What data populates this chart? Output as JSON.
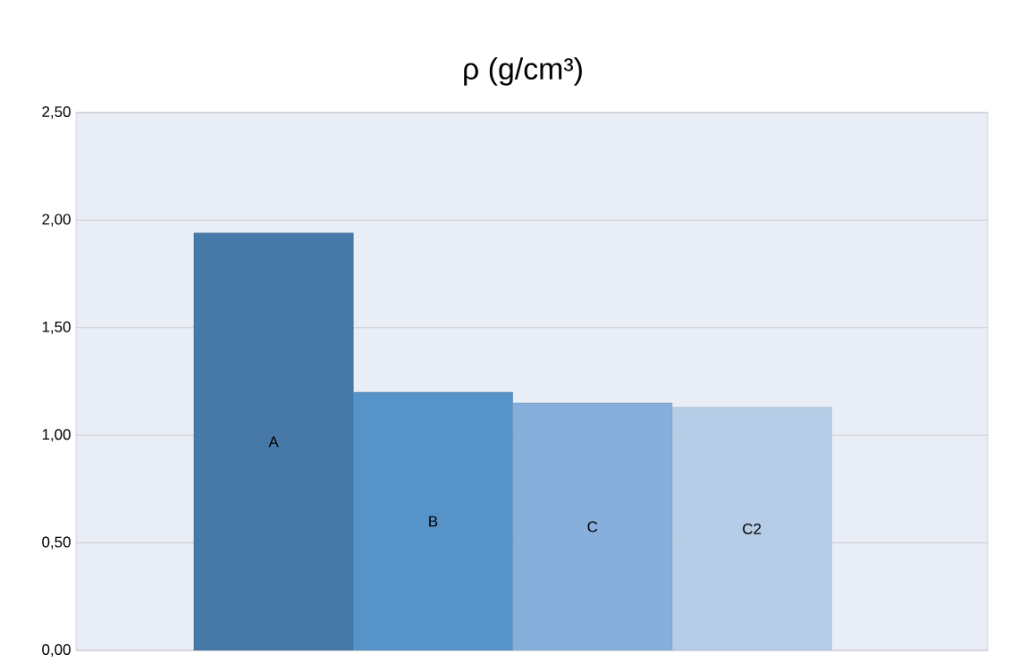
{
  "chart_data": {
    "type": "bar",
    "title": "ρ (g/cm³)",
    "categories": [
      "A",
      "B",
      "C",
      "C2"
    ],
    "values": [
      1.94,
      1.2,
      1.15,
      1.13
    ],
    "colors": [
      "#4779a8",
      "#5593c8",
      "#86afdb",
      "#b7cce6"
    ],
    "ylim": [
      0,
      2.5
    ],
    "yticks": [
      {
        "value": 0,
        "label": "0,00"
      },
      {
        "value": 0.5,
        "label": "0,50"
      },
      {
        "value": 1,
        "label": "1,00"
      },
      {
        "value": 1.5,
        "label": "1,50"
      },
      {
        "value": 2,
        "label": "2,00"
      },
      {
        "value": 2.5,
        "label": "2,50"
      }
    ],
    "grid": "y"
  }
}
